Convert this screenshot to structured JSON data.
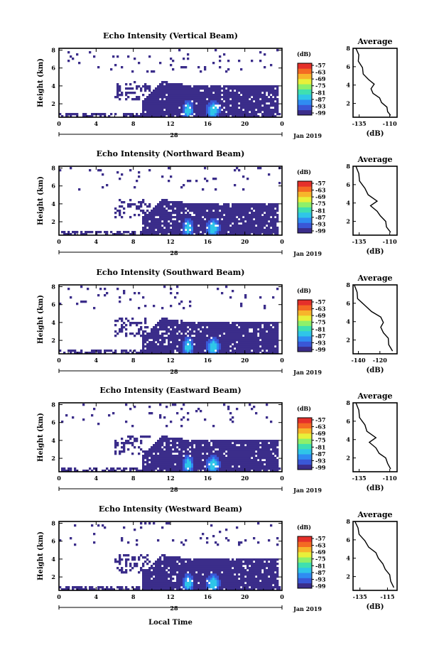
{
  "figure": {
    "xlabel": "Local Time",
    "date_label": "Jan 2019",
    "day_label": "28",
    "colorbar_unit": "(dB)",
    "colorbar_ticks": [
      "-57",
      "-63",
      "-69",
      "-75",
      "-81",
      "-87",
      "-93",
      "-99"
    ],
    "palette": [
      "#3b2d8a",
      "#3a57d6",
      "#2f8cf2",
      "#2fc6e8",
      "#3fe0b0",
      "#8ef06a",
      "#e8f03a",
      "#f7b52b",
      "#f46a23",
      "#e5302a"
    ]
  },
  "chart_data": [
    {
      "type": "heatmap",
      "title": "Echo Intensity (Vertical Beam)",
      "ylabel": "Height (km)",
      "x_ticks": [
        "0",
        "4",
        "8",
        "12",
        "16",
        "20",
        "0"
      ],
      "xlim": [
        0,
        24
      ],
      "y_ticks": [
        "2",
        "4",
        "6",
        "8"
      ],
      "ylim": [
        0.5,
        8.2
      ],
      "clim": [
        -100,
        -54
      ],
      "avg_profile": {
        "title": "Average",
        "xlabel": "(dB)",
        "x_ticks": [
          "-135",
          "-110"
        ],
        "xlim": [
          -140,
          -104
        ],
        "ylim": [
          0.5,
          8
        ],
        "y_ticks": [
          "2",
          "4",
          "6",
          "8"
        ],
        "points": [
          [
            -137,
            8.0
          ],
          [
            -136,
            7.3
          ],
          [
            -135,
            6.6
          ],
          [
            -133,
            5.9
          ],
          [
            -131,
            5.2
          ],
          [
            -128,
            4.6
          ],
          [
            -122,
            4.1
          ],
          [
            -126,
            3.6
          ],
          [
            -123,
            3.1
          ],
          [
            -119,
            2.6
          ],
          [
            -116,
            2.1
          ],
          [
            -113,
            1.6
          ],
          [
            -111,
            1.1
          ],
          [
            -110,
            0.7
          ]
        ]
      }
    },
    {
      "type": "heatmap",
      "title": "Echo Intensity (Northward Beam)",
      "ylabel": "Height (km)",
      "x_ticks": [
        "0",
        "4",
        "8",
        "12",
        "16",
        "20",
        "0"
      ],
      "xlim": [
        0,
        24
      ],
      "y_ticks": [
        "2",
        "4",
        "6",
        "8"
      ],
      "ylim": [
        0.5,
        8.2
      ],
      "clim": [
        -100,
        -54
      ],
      "avg_profile": {
        "title": "Average",
        "xlabel": "(dB)",
        "x_ticks": [
          "-135",
          "-110"
        ],
        "xlim": [
          -140,
          -104
        ],
        "ylim": [
          0.5,
          8
        ],
        "y_ticks": [
          "2",
          "4",
          "6",
          "8"
        ],
        "points": [
          [
            -137,
            8.0
          ],
          [
            -136,
            7.2
          ],
          [
            -134,
            6.4
          ],
          [
            -131,
            5.6
          ],
          [
            -127,
            4.9
          ],
          [
            -121,
            4.2
          ],
          [
            -125,
            3.7
          ],
          [
            -121,
            3.1
          ],
          [
            -117,
            2.6
          ],
          [
            -114,
            2.0
          ],
          [
            -112,
            1.4
          ],
          [
            -110,
            0.8
          ]
        ]
      }
    },
    {
      "type": "heatmap",
      "title": "Echo Intensity (Southward Beam)",
      "ylabel": "Height (km)",
      "x_ticks": [
        "0",
        "4",
        "8",
        "12",
        "16",
        "20",
        "0"
      ],
      "xlim": [
        0,
        24
      ],
      "y_ticks": [
        "2",
        "4",
        "6",
        "8"
      ],
      "ylim": [
        0.5,
        8.2
      ],
      "clim": [
        -100,
        -54
      ],
      "avg_profile": {
        "title": "Average",
        "xlabel": "(dB)",
        "x_ticks": [
          "-140",
          "-120"
        ],
        "xlim": [
          -145,
          -104
        ],
        "ylim": [
          0.5,
          8
        ],
        "y_ticks": [
          "2",
          "4",
          "6",
          "8"
        ],
        "points": [
          [
            -143,
            8.0
          ],
          [
            -142,
            7.2
          ],
          [
            -140,
            6.5
          ],
          [
            -135,
            5.8
          ],
          [
            -127,
            5.1
          ],
          [
            -120,
            4.5
          ],
          [
            -116,
            3.9
          ],
          [
            -120,
            3.4
          ],
          [
            -116,
            2.8
          ],
          [
            -113,
            2.2
          ],
          [
            -111,
            1.5
          ],
          [
            -109,
            0.8
          ]
        ]
      }
    },
    {
      "type": "heatmap",
      "title": "Echo Intensity (Eastward Beam)",
      "ylabel": "Height (km)",
      "x_ticks": [
        "0",
        "4",
        "8",
        "12",
        "16",
        "20",
        "0"
      ],
      "xlim": [
        0,
        24
      ],
      "y_ticks": [
        "2",
        "4",
        "6",
        "8"
      ],
      "ylim": [
        0.5,
        8.2
      ],
      "clim": [
        -100,
        -54
      ],
      "avg_profile": {
        "title": "Average",
        "xlabel": "(dB)",
        "x_ticks": [
          "-135",
          "-110"
        ],
        "xlim": [
          -140,
          -104
        ],
        "ylim": [
          0.5,
          8
        ],
        "y_ticks": [
          "2",
          "4",
          "6",
          "8"
        ],
        "points": [
          [
            -137,
            8.0
          ],
          [
            -136,
            7.2
          ],
          [
            -134,
            6.4
          ],
          [
            -131,
            5.6
          ],
          [
            -128,
            4.9
          ],
          [
            -122,
            4.2
          ],
          [
            -126,
            3.7
          ],
          [
            -122,
            3.1
          ],
          [
            -118,
            2.5
          ],
          [
            -114,
            2.0
          ],
          [
            -111,
            1.4
          ],
          [
            -110,
            0.8
          ]
        ]
      }
    },
    {
      "type": "heatmap",
      "title": "Echo Intensity (Westward Beam)",
      "ylabel": "Height (km)",
      "x_ticks": [
        "0",
        "4",
        "8",
        "12",
        "16",
        "20",
        "0"
      ],
      "xlim": [
        0,
        24
      ],
      "y_ticks": [
        "2",
        "4",
        "6",
        "8"
      ],
      "ylim": [
        0.5,
        8.2
      ],
      "clim": [
        -100,
        -54
      ],
      "avg_profile": {
        "title": "Average",
        "xlabel": "(dB)",
        "x_ticks": [
          "-135",
          "-115"
        ],
        "xlim": [
          -140,
          -108
        ],
        "ylim": [
          0.5,
          8
        ],
        "y_ticks": [
          "2",
          "4",
          "6",
          "8"
        ],
        "points": [
          [
            -138,
            8.0
          ],
          [
            -137,
            7.3
          ],
          [
            -135,
            6.6
          ],
          [
            -132,
            5.9
          ],
          [
            -128,
            5.2
          ],
          [
            -124,
            4.6
          ],
          [
            -121,
            4.0
          ],
          [
            -119,
            3.4
          ],
          [
            -116,
            2.8
          ],
          [
            -114,
            2.2
          ],
          [
            -112,
            1.5
          ],
          [
            -111,
            0.8
          ]
        ]
      }
    }
  ]
}
